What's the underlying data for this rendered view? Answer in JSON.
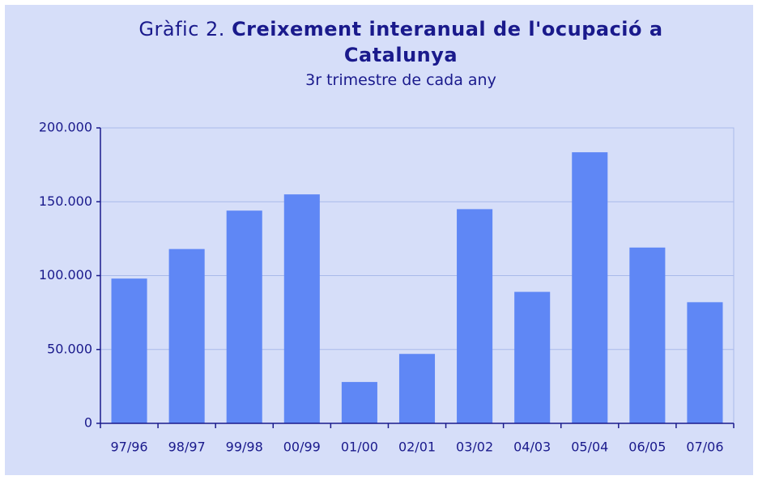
{
  "chart_data": {
    "type": "bar",
    "title_prefix": "Gràfic 2.",
    "title": "Creixement interanual de l'ocupació a Catalunya",
    "subtitle": "3r trimestre de cada any",
    "categories": [
      "97/96",
      "98/97",
      "99/98",
      "00/99",
      "01/00",
      "02/01",
      "03/02",
      "04/03",
      "05/04",
      "06/05",
      "07/06"
    ],
    "values": [
      98000,
      118000,
      144000,
      155000,
      28000,
      47000,
      145000,
      89000,
      183500,
      119000,
      82000
    ],
    "color": "#5f87f5",
    "ylim": [
      0,
      200000
    ],
    "yticks": [
      0,
      {
        "value": 50000,
        "label": "50.000"
      },
      {
        "value": 100000,
        "label": "100.000"
      },
      {
        "value": 150000,
        "label": "150.000"
      },
      {
        "value": 200000,
        "label": "200.000"
      }
    ],
    "grid": true
  }
}
